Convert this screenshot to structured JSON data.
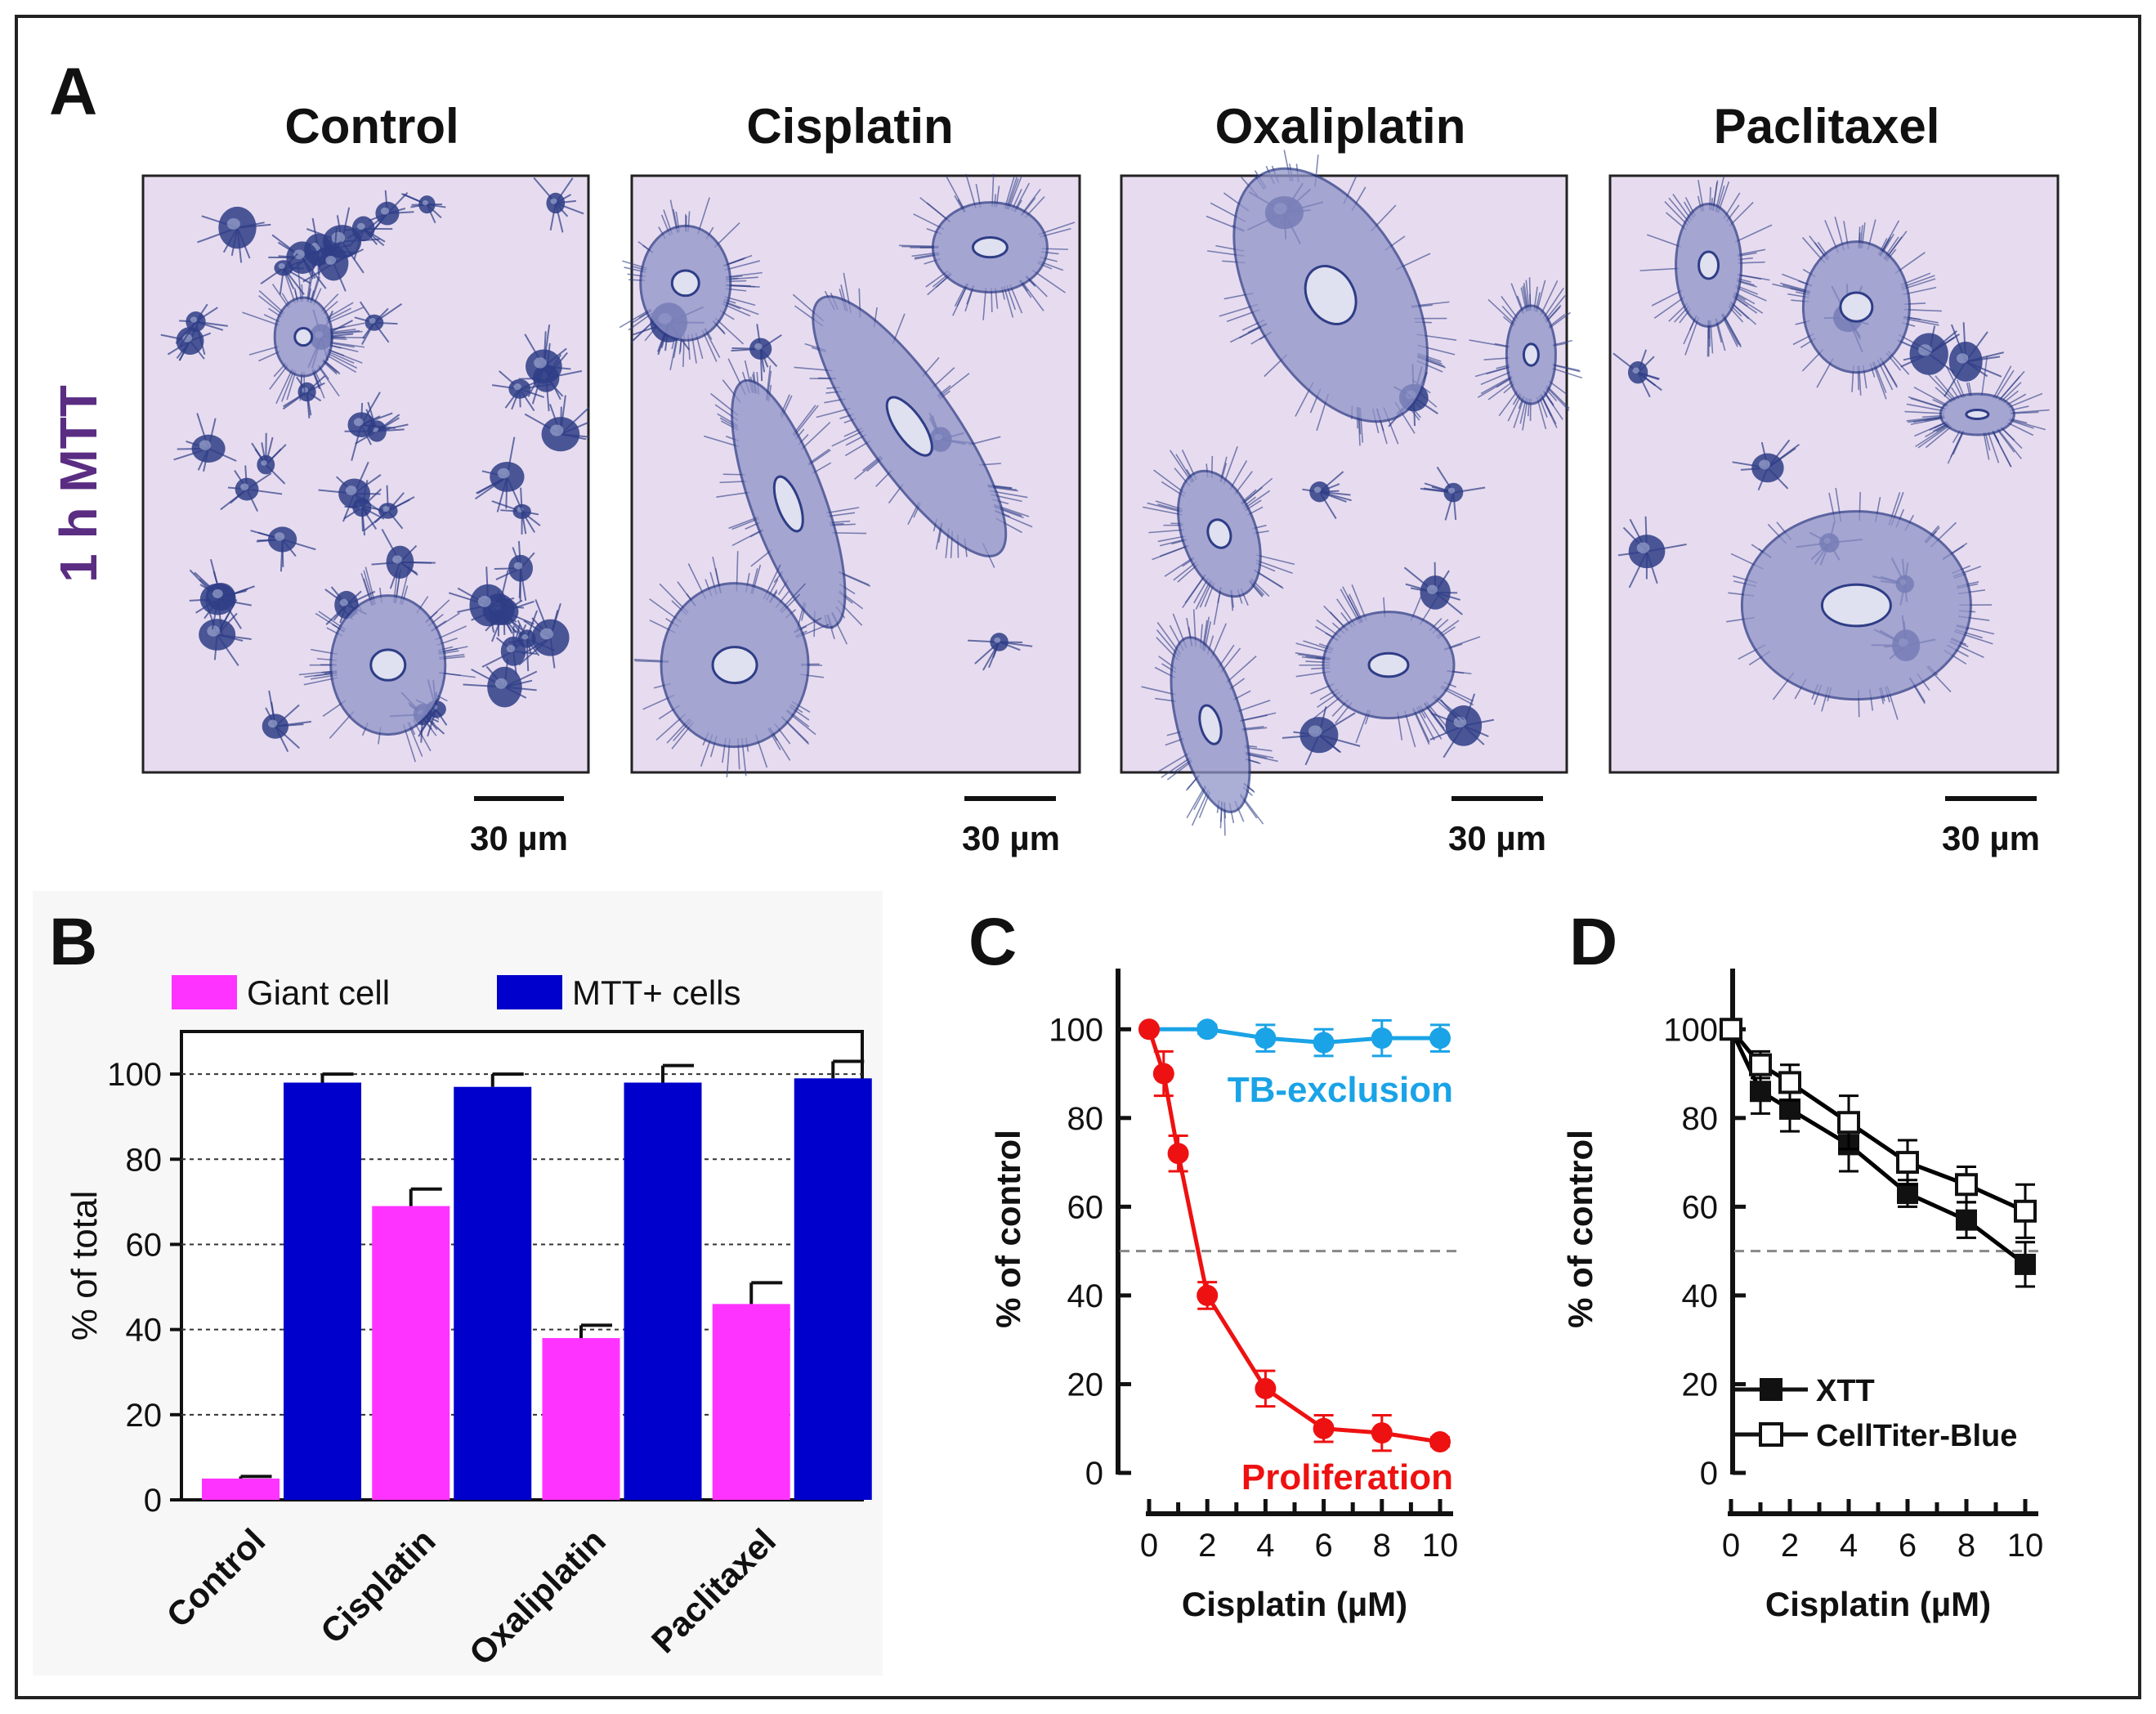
{
  "panel_a": {
    "letter": "A",
    "row_label": "1 h MTT",
    "panels": [
      {
        "title": "Control",
        "scale_bar": "30 µm",
        "image_name": "micrograph-control"
      },
      {
        "title": "Cisplatin",
        "scale_bar": "30 µm",
        "image_name": "micrograph-cisplatin"
      },
      {
        "title": "Oxaliplatin",
        "scale_bar": "30 µm",
        "image_name": "micrograph-oxaliplatin"
      },
      {
        "title": "Paclitaxel",
        "scale_bar": "30 µm",
        "image_name": "micrograph-paclitaxel"
      }
    ],
    "colors": {
      "background": "#e7dcef",
      "stain": "#2e3d86"
    }
  },
  "chart_data": [
    {
      "panel": "B",
      "type": "bar",
      "categories": [
        "Control",
        "Cisplatin",
        "Oxaliplatin",
        "Paclitaxel"
      ],
      "series": [
        {
          "name": "Giant cell",
          "values": [
            5,
            69,
            38,
            46
          ],
          "errors": [
            0.5,
            4,
            3,
            5
          ],
          "color": "#ff33ff"
        },
        {
          "name": "MTT+ cells",
          "values": [
            98,
            97,
            98,
            99
          ],
          "errors": [
            2,
            3,
            4,
            4
          ],
          "color": "#0000cc"
        }
      ],
      "xlabel": "",
      "ylabel": "% of total",
      "ylim": [
        0,
        110
      ],
      "yticks": [
        0,
        20,
        40,
        60,
        80,
        100
      ],
      "grid": true,
      "legend": "top"
    },
    {
      "panel": "C",
      "type": "line",
      "xlabel": "Cisplatin (µM)",
      "ylabel": "% of control",
      "xlim": [
        0,
        10
      ],
      "ylim": [
        0,
        110
      ],
      "xticks": [
        0,
        2,
        4,
        6,
        8,
        10
      ],
      "yticks": [
        0,
        20,
        40,
        60,
        80,
        100
      ],
      "reference_line": 50,
      "series": [
        {
          "name": "TB-exclusion",
          "x": [
            0,
            2,
            4,
            6,
            8,
            10
          ],
          "values": [
            100,
            100,
            98,
            97,
            98,
            98
          ],
          "errors": [
            0,
            1,
            3,
            3,
            4,
            3
          ],
          "color": "#1aa3e6",
          "marker": "circle"
        },
        {
          "name": "Proliferation",
          "x": [
            0,
            0.5,
            1,
            2,
            4,
            6,
            8,
            10
          ],
          "values": [
            100,
            90,
            72,
            40,
            19,
            10,
            9,
            7
          ],
          "errors": [
            0,
            5,
            4,
            3,
            4,
            3,
            4,
            1
          ],
          "color": "#ee1111",
          "marker": "circle"
        }
      ]
    },
    {
      "panel": "D",
      "type": "line",
      "xlabel": "Cisplatin (µM)",
      "ylabel": "% of control",
      "xlim": [
        0,
        10
      ],
      "ylim": [
        0,
        110
      ],
      "xticks": [
        0,
        2,
        4,
        6,
        8,
        10
      ],
      "yticks": [
        0,
        20,
        40,
        60,
        80,
        100
      ],
      "reference_line": 50,
      "legend": "bottom-left",
      "series": [
        {
          "name": "XTT",
          "x": [
            0,
            1,
            2,
            4,
            6,
            8,
            10
          ],
          "values": [
            100,
            86,
            82,
            74,
            63,
            57,
            47
          ],
          "errors": [
            0,
            5,
            5,
            6,
            3,
            4,
            5
          ],
          "color": "#000000",
          "marker": "filled-square"
        },
        {
          "name": "CellTiter-Blue",
          "x": [
            0,
            1,
            2,
            4,
            6,
            8,
            10
          ],
          "values": [
            100,
            92,
            88,
            79,
            70,
            65,
            59
          ],
          "errors": [
            0,
            3,
            4,
            6,
            5,
            4,
            6
          ],
          "color": "#000000",
          "marker": "open-square"
        }
      ]
    }
  ],
  "panel_labels": {
    "b": "B",
    "c": "C",
    "d": "D"
  }
}
